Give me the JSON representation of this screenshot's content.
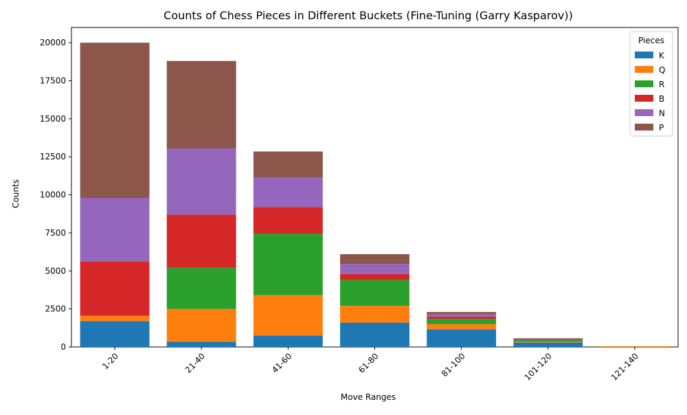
{
  "chart_data": {
    "type": "bar",
    "stacked": true,
    "title": "Counts of Chess Pieces in Different Buckets (Fine-Tuning (Garry Kasparov))",
    "xlabel": "Move Ranges",
    "ylabel": "Counts",
    "categories": [
      "1-20",
      "21-40",
      "41-60",
      "61-80",
      "81-100",
      "101-120",
      "121-140"
    ],
    "ylim": [
      0,
      21000
    ],
    "yticks": [
      0,
      2500,
      5000,
      7500,
      10000,
      12500,
      15000,
      17500,
      20000
    ],
    "legend": {
      "title": "Pieces",
      "position": "top-right"
    },
    "series": [
      {
        "name": "K",
        "color": "#1f77b4",
        "values": [
          1700,
          350,
          750,
          1600,
          1150,
          300,
          0
        ]
      },
      {
        "name": "Q",
        "color": "#ff7f0e",
        "values": [
          350,
          2150,
          2650,
          1100,
          350,
          50,
          50
        ]
      },
      {
        "name": "R",
        "color": "#2ca02c",
        "values": [
          0,
          2700,
          4050,
          1700,
          350,
          100,
          0
        ]
      },
      {
        "name": "B",
        "color": "#d62728",
        "values": [
          3550,
          3500,
          1750,
          400,
          150,
          50,
          0
        ]
      },
      {
        "name": "N",
        "color": "#9467bd",
        "values": [
          4200,
          4350,
          1950,
          650,
          150,
          25,
          0
        ]
      },
      {
        "name": "P",
        "color": "#8c564b",
        "values": [
          10200,
          5750,
          1700,
          650,
          150,
          50,
          0
        ]
      }
    ]
  }
}
